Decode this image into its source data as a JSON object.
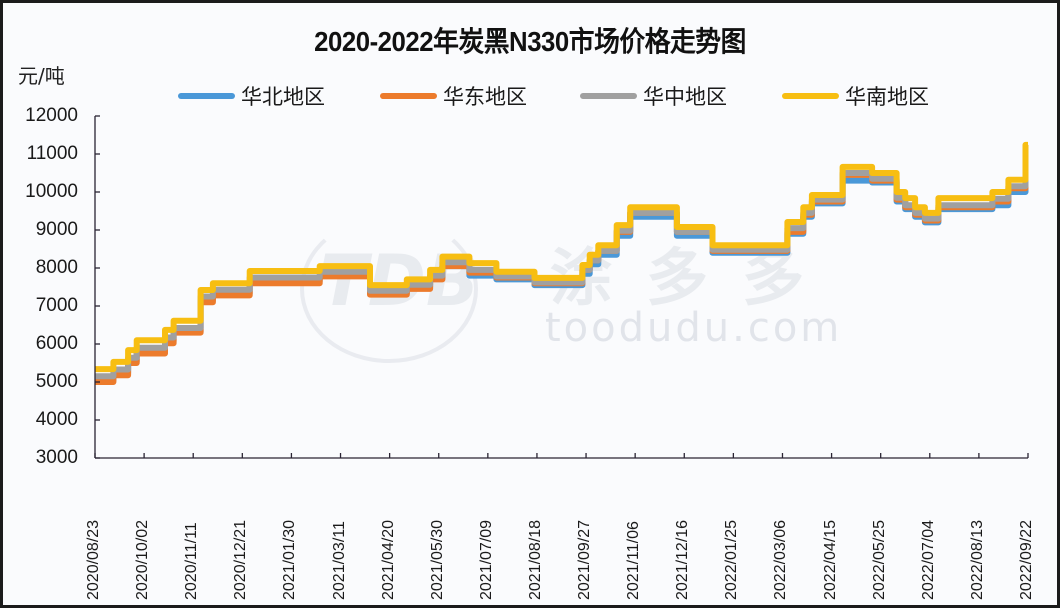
{
  "title": "2020-2022年炭黑N330市场价格走势图",
  "unit_label": "元/吨",
  "watermark": {
    "logo": "TDB",
    "cn": "涂多多",
    "url": "toodudu.com"
  },
  "legend": [
    {
      "label": "华北地区",
      "color": "#4a98d8"
    },
    {
      "label": "华东地区",
      "color": "#ec7b2c"
    },
    {
      "label": "华中地区",
      "color": "#a0a0a0"
    },
    {
      "label": "华南地区",
      "color": "#f7be12"
    }
  ],
  "chart_data": {
    "type": "line",
    "title": "2020-2022年炭黑N330市场价格走势图",
    "xlabel": "",
    "ylabel": "元/吨",
    "ylim": [
      3000,
      12000
    ],
    "yticks": [
      3000,
      4000,
      5000,
      6000,
      7000,
      8000,
      9000,
      10000,
      11000,
      12000
    ],
    "xticks": [
      "2020/08/23",
      "2020/10/02",
      "2020/11/11",
      "2020/12/21",
      "2021/01/30",
      "2021/03/11",
      "2021/04/20",
      "2021/05/30",
      "2021/07/09",
      "2021/08/18",
      "2021/09/27",
      "2021/11/06",
      "2021/12/16",
      "2022/01/25",
      "2022/03/06",
      "2022/04/15",
      "2022/05/25",
      "2022/07/04",
      "2022/08/13",
      "2022/09/22"
    ],
    "x_day_span": 760,
    "grid": false,
    "legend_position": "top",
    "x_unit": "days since 2020/08/23 (step points)",
    "series": [
      {
        "name": "华北地区",
        "color": "#4a98d8",
        "points": [
          [
            0,
            5050
          ],
          [
            15,
            5230
          ],
          [
            27,
            5540
          ],
          [
            34,
            5800
          ],
          [
            57,
            6070
          ],
          [
            64,
            6320
          ],
          [
            86,
            7150
          ],
          [
            96,
            7330
          ],
          [
            126,
            7650
          ],
          [
            183,
            7800
          ],
          [
            224,
            7330
          ],
          [
            254,
            7500
          ],
          [
            273,
            7750
          ],
          [
            283,
            8050
          ],
          [
            305,
            7800
          ],
          [
            327,
            7700
          ],
          [
            358,
            7550
          ],
          [
            397,
            7850
          ],
          [
            403,
            8100
          ],
          [
            410,
            8350
          ],
          [
            425,
            8850
          ],
          [
            436,
            9350
          ],
          [
            474,
            8850
          ],
          [
            503,
            8400
          ],
          [
            564,
            8900
          ],
          [
            577,
            9350
          ],
          [
            584,
            9700
          ],
          [
            609,
            10300
          ],
          [
            633,
            10250
          ],
          [
            653,
            9750
          ],
          [
            660,
            9550
          ],
          [
            668,
            9350
          ],
          [
            676,
            9200
          ],
          [
            687,
            9550
          ],
          [
            731,
            9650
          ],
          [
            744,
            10000
          ],
          [
            758,
            10950
          ],
          [
            760,
            10950
          ]
        ]
      },
      {
        "name": "华东地区",
        "color": "#ec7b2c",
        "points": [
          [
            0,
            5000
          ],
          [
            15,
            5180
          ],
          [
            27,
            5500
          ],
          [
            34,
            5750
          ],
          [
            57,
            6020
          ],
          [
            64,
            6300
          ],
          [
            86,
            7100
          ],
          [
            96,
            7280
          ],
          [
            126,
            7600
          ],
          [
            183,
            7780
          ],
          [
            224,
            7300
          ],
          [
            254,
            7450
          ],
          [
            273,
            7700
          ],
          [
            283,
            8050
          ],
          [
            305,
            7880
          ],
          [
            327,
            7750
          ],
          [
            358,
            7600
          ],
          [
            397,
            7950
          ],
          [
            403,
            8200
          ],
          [
            410,
            8450
          ],
          [
            425,
            8950
          ],
          [
            436,
            9450
          ],
          [
            474,
            8950
          ],
          [
            503,
            8450
          ],
          [
            564,
            8950
          ],
          [
            577,
            9400
          ],
          [
            584,
            9750
          ],
          [
            609,
            10450
          ],
          [
            633,
            10300
          ],
          [
            653,
            9800
          ],
          [
            660,
            9600
          ],
          [
            668,
            9400
          ],
          [
            676,
            9250
          ],
          [
            687,
            9600
          ],
          [
            731,
            9750
          ],
          [
            744,
            10100
          ],
          [
            758,
            11050
          ],
          [
            760,
            11050
          ]
        ]
      },
      {
        "name": "华中地区",
        "color": "#a0a0a0",
        "points": [
          [
            0,
            5150
          ],
          [
            15,
            5330
          ],
          [
            27,
            5640
          ],
          [
            34,
            5900
          ],
          [
            57,
            6170
          ],
          [
            64,
            6420
          ],
          [
            86,
            7250
          ],
          [
            96,
            7430
          ],
          [
            126,
            7750
          ],
          [
            183,
            7900
          ],
          [
            224,
            7400
          ],
          [
            254,
            7560
          ],
          [
            273,
            7800
          ],
          [
            283,
            8150
          ],
          [
            305,
            7950
          ],
          [
            327,
            7780
          ],
          [
            358,
            7620
          ],
          [
            397,
            7950
          ],
          [
            403,
            8200
          ],
          [
            410,
            8450
          ],
          [
            425,
            8980
          ],
          [
            436,
            9450
          ],
          [
            474,
            8950
          ],
          [
            503,
            8480
          ],
          [
            564,
            9050
          ],
          [
            577,
            9450
          ],
          [
            584,
            9800
          ],
          [
            609,
            10500
          ],
          [
            633,
            10350
          ],
          [
            653,
            9850
          ],
          [
            660,
            9650
          ],
          [
            668,
            9450
          ],
          [
            676,
            9300
          ],
          [
            687,
            9650
          ],
          [
            731,
            9820
          ],
          [
            744,
            10150
          ],
          [
            758,
            11100
          ],
          [
            760,
            11100
          ]
        ]
      },
      {
        "name": "华南地区",
        "color": "#f7be12",
        "points": [
          [
            0,
            5340
          ],
          [
            15,
            5530
          ],
          [
            27,
            5840
          ],
          [
            34,
            6100
          ],
          [
            57,
            6370
          ],
          [
            64,
            6610
          ],
          [
            86,
            7420
          ],
          [
            96,
            7600
          ],
          [
            126,
            7920
          ],
          [
            183,
            8050
          ],
          [
            224,
            7550
          ],
          [
            254,
            7700
          ],
          [
            273,
            7950
          ],
          [
            283,
            8300
          ],
          [
            305,
            8130
          ],
          [
            327,
            7900
          ],
          [
            358,
            7740
          ],
          [
            397,
            8080
          ],
          [
            403,
            8350
          ],
          [
            410,
            8600
          ],
          [
            425,
            9130
          ],
          [
            436,
            9600
          ],
          [
            474,
            9080
          ],
          [
            503,
            8600
          ],
          [
            564,
            9210
          ],
          [
            577,
            9600
          ],
          [
            584,
            9920
          ],
          [
            609,
            10660
          ],
          [
            633,
            10500
          ],
          [
            653,
            10000
          ],
          [
            660,
            9840
          ],
          [
            668,
            9600
          ],
          [
            676,
            9450
          ],
          [
            687,
            9840
          ],
          [
            731,
            10000
          ],
          [
            744,
            10320
          ],
          [
            758,
            11240
          ],
          [
            760,
            11240
          ]
        ]
      }
    ]
  }
}
